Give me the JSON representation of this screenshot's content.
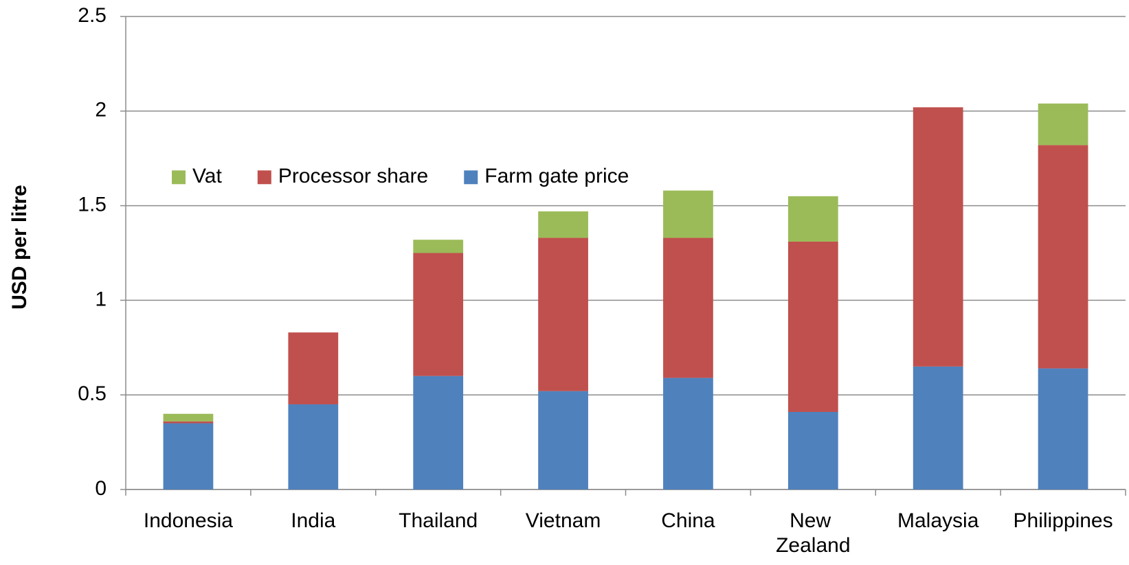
{
  "chart_data": {
    "type": "stacked_bar",
    "ylabel": "USD per litre",
    "categories": [
      "Indonesia",
      "India",
      "Thailand",
      "Vietnam",
      "China",
      "New Zealand",
      "Malaysia",
      "Philippines"
    ],
    "series": [
      {
        "name": "Farm gate price",
        "color": "#4f81bd",
        "values": [
          0.35,
          0.45,
          0.6,
          0.52,
          0.59,
          0.41,
          0.65,
          0.64
        ]
      },
      {
        "name": "Processor share",
        "color": "#c0504d",
        "values": [
          0.01,
          0.38,
          0.65,
          0.81,
          0.74,
          0.9,
          1.37,
          1.18
        ]
      },
      {
        "name": "Vat",
        "color": "#9bbb59",
        "values": [
          0.04,
          0,
          0.07,
          0.14,
          0.25,
          0.24,
          0,
          0.22
        ]
      }
    ],
    "ylim": [
      0,
      2.5
    ],
    "yticks": [
      0,
      0.5,
      1,
      1.5,
      2,
      2.5
    ],
    "grid": true,
    "legend": "top-left"
  }
}
